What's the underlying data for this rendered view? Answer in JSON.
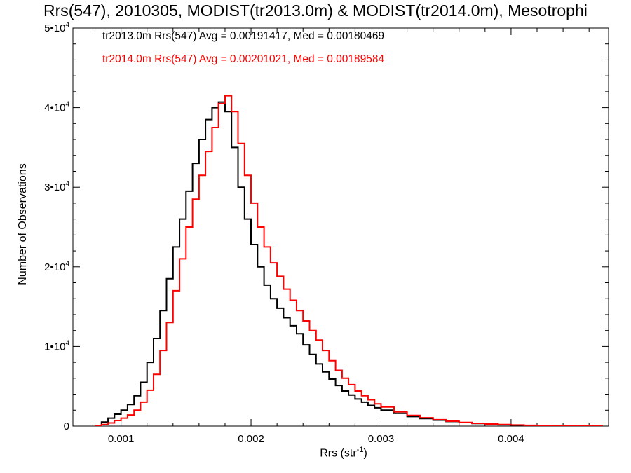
{
  "chart_data": {
    "type": "line",
    "step": true,
    "title": "Rrs(547), 2010305, MODIST(tr2013.0m) & MODIST(tr2014.0m), Mesotrophi",
    "xlabel": "Rrs (str",
    "xlabel_exp": "-1",
    "xlabel_close": ")",
    "ylabel": "Number of Observations",
    "xlim": [
      0.00063,
      0.00475
    ],
    "ylim": [
      0,
      50000
    ],
    "xticks": [
      {
        "value": 0.001,
        "label": "0.001"
      },
      {
        "value": 0.002,
        "label": "0.002"
      },
      {
        "value": 0.003,
        "label": "0.003"
      },
      {
        "value": 0.004,
        "label": "0.004"
      }
    ],
    "yticks": [
      {
        "value": 0,
        "mant": "0",
        "exp": ""
      },
      {
        "value": 10000,
        "mant": "1•10",
        "exp": "4"
      },
      {
        "value": 20000,
        "mant": "2•10",
        "exp": "4"
      },
      {
        "value": 30000,
        "mant": "3•10",
        "exp": "4"
      },
      {
        "value": 40000,
        "mant": "4•10",
        "exp": "4"
      },
      {
        "value": 50000,
        "mant": "5•10",
        "exp": "4"
      }
    ],
    "grid": false,
    "legend_position": "top-left",
    "series": [
      {
        "color": "#000000",
        "label": "tr2013.0m Rrs(547) Avg = 0.00191417, Med = 0.00180469",
        "x": [
          0.0008,
          0.00085,
          0.0009,
          0.00095,
          0.001,
          0.00105,
          0.0011,
          0.00115,
          0.0012,
          0.00125,
          0.0013,
          0.00135,
          0.0014,
          0.00145,
          0.0015,
          0.00155,
          0.0016,
          0.00165,
          0.0017,
          0.00175,
          0.0018,
          0.00185,
          0.0019,
          0.00195,
          0.002,
          0.00205,
          0.0021,
          0.00215,
          0.0022,
          0.00225,
          0.0023,
          0.00235,
          0.0024,
          0.00245,
          0.0025,
          0.00255,
          0.0026,
          0.00265,
          0.0027,
          0.00275,
          0.0028,
          0.00285,
          0.0029,
          0.00295,
          0.003,
          0.0031,
          0.0032,
          0.0033,
          0.0034,
          0.0035,
          0.0036,
          0.0037,
          0.0038,
          0.0039,
          0.004,
          0.0041,
          0.0042,
          0.0043,
          0.0044,
          0.0045,
          0.0046,
          0.0047
        ],
        "y": [
          0,
          500,
          1000,
          1500,
          2000,
          2700,
          3800,
          5500,
          8000,
          11000,
          14500,
          18500,
          22500,
          26000,
          29500,
          33000,
          36000,
          38500,
          40000,
          40700,
          39500,
          35000,
          30000,
          26000,
          22800,
          20000,
          17700,
          16000,
          14800,
          13600,
          12600,
          11600,
          10200,
          9000,
          7800,
          6800,
          5900,
          5100,
          4400,
          3900,
          3400,
          3000,
          2600,
          2300,
          2000,
          1600,
          1200,
          950,
          750,
          580,
          440,
          330,
          240,
          170,
          120,
          80,
          50,
          30,
          20,
          10,
          5,
          0
        ]
      },
      {
        "color": "#ff0000",
        "label": "tr2014.0m Rrs(547) Avg = 0.00201021, Med = 0.00189584",
        "x": [
          0.0008,
          0.00085,
          0.0009,
          0.00095,
          0.001,
          0.00105,
          0.0011,
          0.00115,
          0.0012,
          0.00125,
          0.0013,
          0.00135,
          0.0014,
          0.00145,
          0.0015,
          0.00155,
          0.0016,
          0.00165,
          0.0017,
          0.00175,
          0.0018,
          0.00185,
          0.0019,
          0.00195,
          0.002,
          0.00205,
          0.0021,
          0.00215,
          0.0022,
          0.00225,
          0.0023,
          0.00235,
          0.0024,
          0.00245,
          0.0025,
          0.00255,
          0.0026,
          0.00265,
          0.0027,
          0.00275,
          0.0028,
          0.00285,
          0.0029,
          0.00295,
          0.003,
          0.0031,
          0.0032,
          0.0033,
          0.0034,
          0.0035,
          0.0036,
          0.0037,
          0.0038,
          0.0039,
          0.004,
          0.0041,
          0.0042,
          0.0043,
          0.0044,
          0.0045,
          0.0046,
          0.0047
        ],
        "y": [
          0,
          200,
          400,
          700,
          1000,
          1400,
          2000,
          3000,
          4500,
          6500,
          9500,
          13000,
          17000,
          21000,
          25000,
          28500,
          31500,
          34500,
          37500,
          40500,
          41500,
          39500,
          35500,
          31500,
          28000,
          25000,
          22500,
          20500,
          18800,
          17200,
          15800,
          14500,
          13200,
          12000,
          10800,
          9500,
          8200,
          7000,
          6000,
          5200,
          4400,
          3800,
          3300,
          2800,
          2400,
          1800,
          1350,
          1050,
          800,
          620,
          470,
          350,
          260,
          190,
          140,
          100,
          70,
          45,
          30,
          20,
          10,
          0
        ]
      }
    ]
  }
}
